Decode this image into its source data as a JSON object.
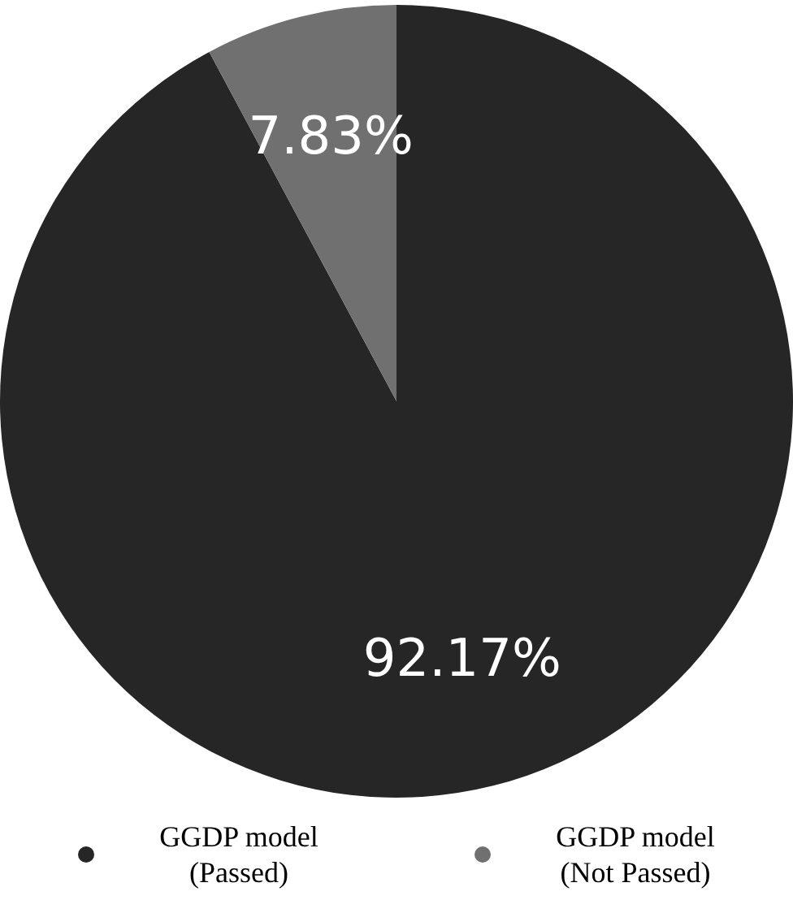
{
  "chart_data": {
    "type": "pie",
    "categories": [
      "GGDP model\n(Passed)",
      "GGDP model\n(Not Passed)"
    ],
    "values": [
      92.17,
      7.83
    ],
    "colors": [
      "#262626",
      "#707070"
    ],
    "value_labels": [
      "92.17%",
      "7.83%"
    ],
    "legend": "bottom"
  }
}
